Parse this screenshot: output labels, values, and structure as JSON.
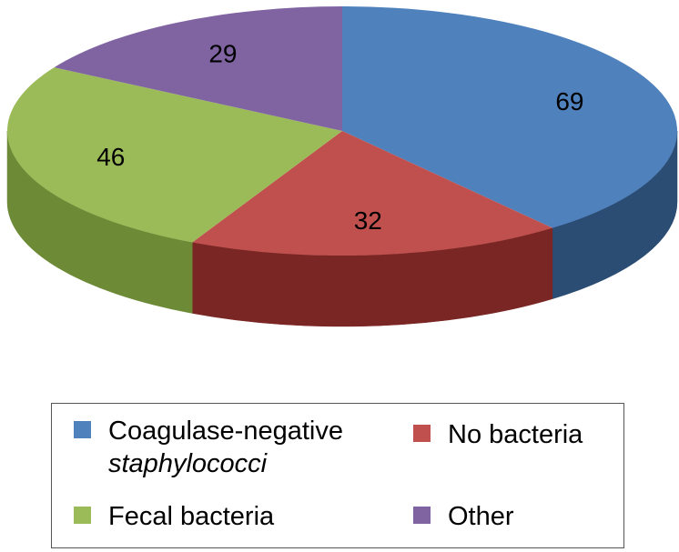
{
  "chart_data": {
    "type": "pie",
    "style": "3d",
    "start": "12 o'clock, clockwise",
    "slices": [
      {
        "label": "Coagulase-negative staphylococci",
        "value": 69,
        "color": "#4f81bd",
        "side_color": "#2b4c73"
      },
      {
        "label": "No bacteria",
        "value": 32,
        "color": "#c0504d",
        "side_color": "#7a2624"
      },
      {
        "label": "Fecal bacteria",
        "value": 46,
        "color": "#9bbb59",
        "side_color": "#6d8a36"
      },
      {
        "label": "Other",
        "value": 29,
        "color": "#8064a2",
        "side_color": "#5a4478"
      }
    ],
    "legend": {
      "position": "bottom",
      "entries": [
        {
          "line1": "Coagulase-negative",
          "line2": "staphylococci",
          "color": "#4f81bd"
        },
        {
          "line1": "No bacteria",
          "line2": "",
          "color": "#c0504d"
        },
        {
          "line1": "Fecal bacteria",
          "line2": "",
          "color": "#9bbb59"
        },
        {
          "line1": "Other",
          "line2": "",
          "color": "#8064a2"
        }
      ]
    }
  }
}
